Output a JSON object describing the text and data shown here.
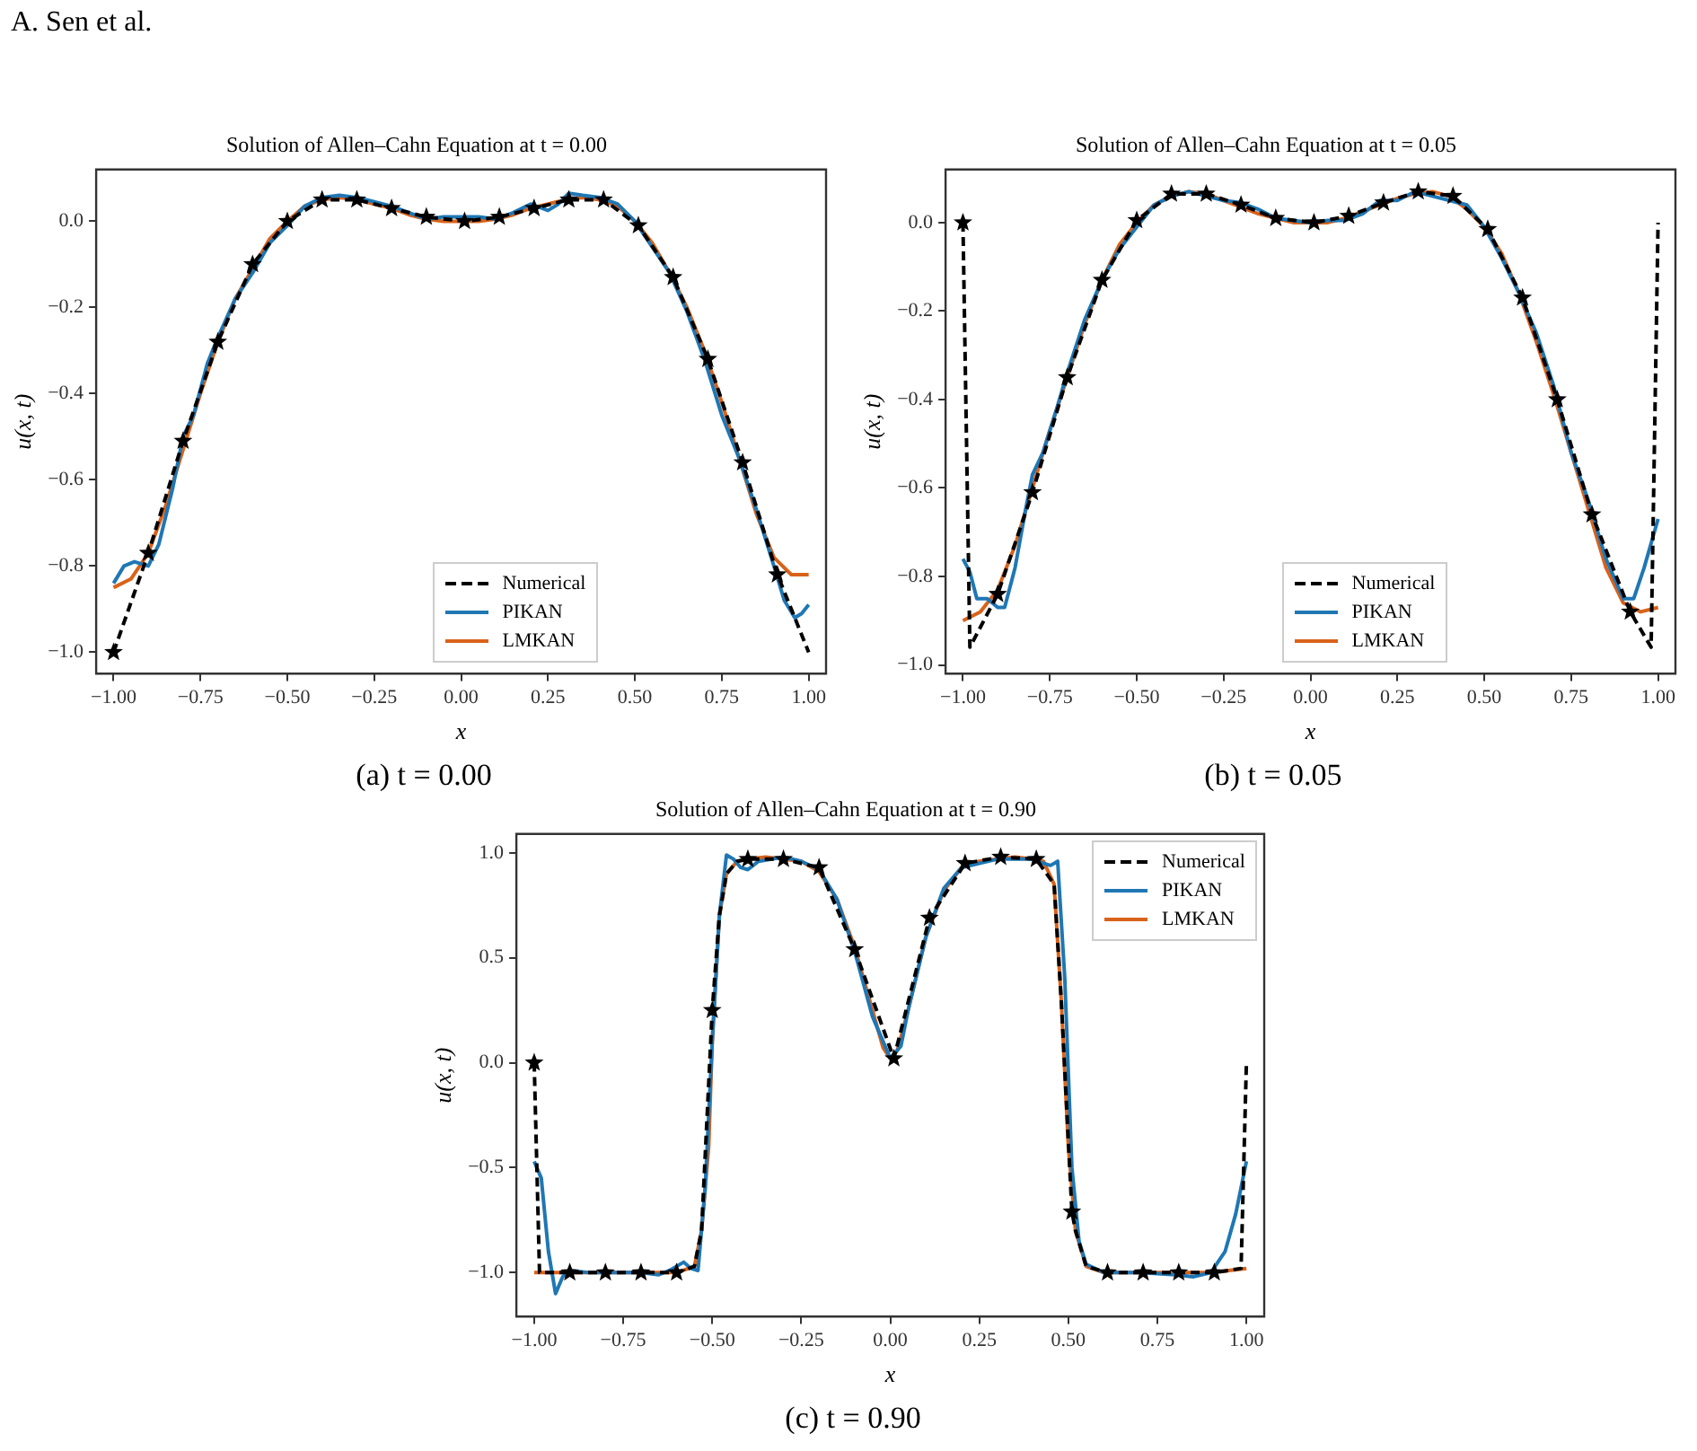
{
  "chart_data": [
    {
      "type": "line",
      "title": "Solution of Allen–Cahn Equation at t = 0.00",
      "xlabel": "x",
      "ylabel": "u(x, t)",
      "annotations": [
        "A. Sen et al.",
        "(a) t = 0.00"
      ],
      "legend": "bottom",
      "grid": false,
      "xlim": [
        -1.05,
        1.05
      ],
      "ylim": [
        -1.05,
        0.12
      ],
      "xticks": [
        {
          "value": -1,
          "label": "−1.00"
        },
        {
          "value": -0.75,
          "label": "−0.75"
        },
        {
          "value": -0.5,
          "label": "−0.50"
        },
        {
          "value": -0.25,
          "label": "−0.25"
        },
        {
          "value": 0,
          "label": "0.00"
        },
        {
          "value": 0.25,
          "label": "0.25"
        },
        {
          "value": 0.5,
          "label": "0.50"
        },
        {
          "value": 0.75,
          "label": "0.75"
        },
        {
          "value": 1,
          "label": "1.00"
        }
      ],
      "yticks": [
        {
          "value": -1,
          "label": "−1.0"
        },
        {
          "value": -0.8,
          "label": "−0.8"
        },
        {
          "value": -0.6,
          "label": "−0.6"
        },
        {
          "value": -0.4,
          "label": "−0.4"
        },
        {
          "value": -0.2,
          "label": "−0.2"
        },
        {
          "value": 0,
          "label": "0.0"
        }
      ],
      "series": [
        {
          "name": "Numerical",
          "type": "line",
          "color": "#000000",
          "line_style": "dashed",
          "marker": "none",
          "x": [
            -1,
            -0.9,
            -0.8,
            -0.7,
            -0.6,
            -0.5,
            -0.4,
            -0.3,
            -0.2,
            -0.1,
            0.01,
            0.11,
            0.21,
            0.31,
            0.41,
            0.51,
            0.61,
            0.71,
            0.81,
            0.91,
            1.0
          ],
          "values": [
            -1.0,
            -0.77,
            -0.51,
            -0.28,
            -0.1,
            0.0,
            0.05,
            0.05,
            0.03,
            0.01,
            0.0,
            0.01,
            0.03,
            0.05,
            0.05,
            -0.01,
            -0.13,
            -0.32,
            -0.56,
            -0.82,
            -1.0
          ]
        },
        {
          "name": "PIKAN",
          "type": "line",
          "color": "#1f77b4",
          "line_style": "solid",
          "marker": "none",
          "x": [
            -1,
            -0.97,
            -0.94,
            -0.9,
            -0.87,
            -0.83,
            -0.8,
            -0.77,
            -0.73,
            -0.7,
            -0.65,
            -0.6,
            -0.55,
            -0.5,
            -0.45,
            -0.4,
            -0.35,
            -0.3,
            -0.25,
            -0.2,
            -0.15,
            -0.1,
            -0.05,
            0,
            0.05,
            0.1,
            0.15,
            0.2,
            0.25,
            0.28,
            0.31,
            0.35,
            0.4,
            0.45,
            0.5,
            0.55,
            0.6,
            0.65,
            0.7,
            0.75,
            0.8,
            0.85,
            0.9,
            0.93,
            0.96,
            0.98,
            1.0
          ],
          "values": [
            -0.84,
            -0.8,
            -0.79,
            -0.8,
            -0.75,
            -0.62,
            -0.5,
            -0.45,
            -0.33,
            -0.27,
            -0.18,
            -0.12,
            -0.05,
            -0.01,
            0.035,
            0.055,
            0.06,
            0.055,
            0.045,
            0.035,
            0.02,
            0.005,
            0.01,
            0.01,
            0.01,
            0.005,
            0.02,
            0.04,
            0.025,
            0.04,
            0.065,
            0.06,
            0.055,
            0.04,
            0.0,
            -0.06,
            -0.12,
            -0.21,
            -0.32,
            -0.45,
            -0.55,
            -0.67,
            -0.8,
            -0.88,
            -0.92,
            -0.91,
            -0.89
          ]
        },
        {
          "name": "LMKAN",
          "type": "line",
          "color": "#d9621a",
          "line_style": "solid",
          "marker": "none",
          "x": [
            -1,
            -0.95,
            -0.9,
            -0.85,
            -0.8,
            -0.75,
            -0.7,
            -0.65,
            -0.6,
            -0.55,
            -0.5,
            -0.45,
            -0.4,
            -0.35,
            -0.3,
            -0.25,
            -0.2,
            -0.15,
            -0.1,
            -0.05,
            0,
            0.05,
            0.1,
            0.15,
            0.2,
            0.25,
            0.3,
            0.35,
            0.4,
            0.45,
            0.5,
            0.55,
            0.6,
            0.65,
            0.7,
            0.75,
            0.8,
            0.85,
            0.9,
            0.95,
            1.0
          ],
          "values": [
            -0.85,
            -0.83,
            -0.77,
            -0.66,
            -0.53,
            -0.4,
            -0.28,
            -0.18,
            -0.11,
            -0.04,
            0.0,
            0.035,
            0.05,
            0.055,
            0.05,
            0.04,
            0.03,
            0.015,
            0.005,
            0.0,
            0.0,
            0.0,
            0.005,
            0.015,
            0.03,
            0.04,
            0.05,
            0.055,
            0.05,
            0.035,
            0.0,
            -0.05,
            -0.12,
            -0.2,
            -0.3,
            -0.42,
            -0.55,
            -0.68,
            -0.78,
            -0.82,
            -0.82
          ]
        },
        {
          "type": "scatter",
          "color": "#000000",
          "marker": "star",
          "x": [
            -1,
            -0.9,
            -0.8,
            -0.7,
            -0.6,
            -0.5,
            -0.4,
            -0.3,
            -0.2,
            -0.1,
            0.01,
            0.11,
            0.21,
            0.31,
            0.41,
            0.51,
            0.61,
            0.71,
            0.81,
            0.91
          ],
          "values": [
            -1.0,
            -0.77,
            -0.51,
            -0.28,
            -0.1,
            0.0,
            0.05,
            0.05,
            0.03,
            0.01,
            0.0,
            0.01,
            0.03,
            0.05,
            0.05,
            -0.01,
            -0.13,
            -0.32,
            -0.56,
            -0.82
          ]
        }
      ]
    },
    {
      "type": "line",
      "title": "Solution of Allen–Cahn Equation at t = 0.05",
      "xlabel": "x",
      "ylabel": "u(x, t)",
      "annotations": [
        "(b) t = 0.05"
      ],
      "legend": "bottom",
      "grid": false,
      "xlim": [
        -1.05,
        1.05
      ],
      "ylim": [
        -1.02,
        0.12
      ],
      "xticks": [
        {
          "value": -1,
          "label": "−1.00"
        },
        {
          "value": -0.75,
          "label": "−0.75"
        },
        {
          "value": -0.5,
          "label": "−0.50"
        },
        {
          "value": -0.25,
          "label": "−0.25"
        },
        {
          "value": 0,
          "label": "0.00"
        },
        {
          "value": 0.25,
          "label": "0.25"
        },
        {
          "value": 0.5,
          "label": "0.50"
        },
        {
          "value": 0.75,
          "label": "0.75"
        },
        {
          "value": 1,
          "label": "1.00"
        }
      ],
      "yticks": [
        {
          "value": -1,
          "label": "−1.0"
        },
        {
          "value": -0.8,
          "label": "−0.8"
        },
        {
          "value": -0.6,
          "label": "−0.6"
        },
        {
          "value": -0.4,
          "label": "−0.4"
        },
        {
          "value": -0.2,
          "label": "−0.2"
        },
        {
          "value": 0,
          "label": "0.0"
        }
      ],
      "series": [
        {
          "name": "Numerical",
          "type": "line",
          "color": "#000000",
          "line_style": "dashed",
          "marker": "none",
          "x": [
            -1,
            -0.98,
            -0.9,
            -0.8,
            -0.7,
            -0.6,
            -0.5,
            -0.4,
            -0.3,
            -0.2,
            -0.1,
            0.01,
            0.11,
            0.21,
            0.31,
            0.41,
            0.51,
            0.61,
            0.71,
            0.81,
            0.92,
            0.98,
            1.0
          ],
          "values": [
            0.0,
            -0.96,
            -0.84,
            -0.61,
            -0.35,
            -0.13,
            0.005,
            0.065,
            0.065,
            0.04,
            0.01,
            0.0,
            0.015,
            0.045,
            0.07,
            0.06,
            -0.015,
            -0.17,
            -0.4,
            -0.66,
            -0.88,
            -0.96,
            0.0
          ]
        },
        {
          "name": "PIKAN",
          "type": "line",
          "color": "#1f77b4",
          "line_style": "solid",
          "marker": "none",
          "x": [
            -1,
            -0.98,
            -0.96,
            -0.93,
            -0.9,
            -0.88,
            -0.85,
            -0.82,
            -0.8,
            -0.77,
            -0.73,
            -0.7,
            -0.65,
            -0.6,
            -0.55,
            -0.5,
            -0.45,
            -0.4,
            -0.35,
            -0.3,
            -0.25,
            -0.2,
            -0.15,
            -0.1,
            -0.05,
            0,
            0.05,
            0.1,
            0.15,
            0.2,
            0.25,
            0.3,
            0.35,
            0.4,
            0.45,
            0.5,
            0.55,
            0.6,
            0.65,
            0.7,
            0.75,
            0.8,
            0.85,
            0.9,
            0.93,
            0.96,
            1.0
          ],
          "values": [
            -0.76,
            -0.79,
            -0.85,
            -0.85,
            -0.87,
            -0.87,
            -0.78,
            -0.65,
            -0.57,
            -0.52,
            -0.42,
            -0.34,
            -0.22,
            -0.13,
            -0.06,
            -0.01,
            0.04,
            0.06,
            0.07,
            0.06,
            0.05,
            0.045,
            0.03,
            0.01,
            0.005,
            0.0,
            0.005,
            0.005,
            0.02,
            0.05,
            0.05,
            0.07,
            0.06,
            0.05,
            0.04,
            -0.01,
            -0.08,
            -0.16,
            -0.25,
            -0.37,
            -0.52,
            -0.63,
            -0.76,
            -0.85,
            -0.85,
            -0.78,
            -0.67
          ]
        },
        {
          "name": "LMKAN",
          "type": "line",
          "color": "#d9621a",
          "line_style": "solid",
          "marker": "none",
          "x": [
            -1,
            -0.95,
            -0.9,
            -0.85,
            -0.8,
            -0.75,
            -0.7,
            -0.65,
            -0.6,
            -0.55,
            -0.5,
            -0.45,
            -0.4,
            -0.35,
            -0.3,
            -0.25,
            -0.2,
            -0.15,
            -0.1,
            -0.05,
            0,
            0.05,
            0.1,
            0.15,
            0.2,
            0.25,
            0.3,
            0.35,
            0.4,
            0.45,
            0.5,
            0.55,
            0.6,
            0.65,
            0.7,
            0.75,
            0.8,
            0.85,
            0.9,
            0.95,
            1.0
          ],
          "values": [
            -0.9,
            -0.88,
            -0.83,
            -0.73,
            -0.6,
            -0.47,
            -0.35,
            -0.23,
            -0.13,
            -0.05,
            0.0,
            0.04,
            0.06,
            0.07,
            0.065,
            0.05,
            0.035,
            0.02,
            0.01,
            0.0,
            0.0,
            0.0,
            0.01,
            0.025,
            0.04,
            0.055,
            0.065,
            0.07,
            0.06,
            0.03,
            -0.01,
            -0.07,
            -0.16,
            -0.27,
            -0.39,
            -0.52,
            -0.65,
            -0.78,
            -0.86,
            -0.88,
            -0.87
          ]
        },
        {
          "type": "scatter",
          "color": "#000000",
          "marker": "star",
          "x": [
            -1,
            -0.9,
            -0.8,
            -0.7,
            -0.6,
            -0.5,
            -0.4,
            -0.3,
            -0.2,
            -0.1,
            0.01,
            0.11,
            0.21,
            0.31,
            0.41,
            0.51,
            0.61,
            0.71,
            0.81,
            0.92
          ],
          "values": [
            0.0,
            -0.84,
            -0.61,
            -0.35,
            -0.13,
            0.005,
            0.065,
            0.065,
            0.04,
            0.01,
            0.0,
            0.015,
            0.045,
            0.07,
            0.06,
            -0.015,
            -0.17,
            -0.4,
            -0.66,
            -0.88
          ]
        }
      ]
    },
    {
      "type": "line",
      "title": "Solution of Allen–Cahn Equation at t = 0.90",
      "xlabel": "x",
      "ylabel": "u(x, t)",
      "annotations": [
        "(c) t = 0.90"
      ],
      "legend": "top right",
      "grid": false,
      "xlim": [
        -1.05,
        1.05
      ],
      "ylim": [
        -1.21,
        1.09
      ],
      "xticks": [
        {
          "value": -1,
          "label": "−1.00"
        },
        {
          "value": -0.75,
          "label": "−0.75"
        },
        {
          "value": -0.5,
          "label": "−0.50"
        },
        {
          "value": -0.25,
          "label": "−0.25"
        },
        {
          "value": 0,
          "label": "0.00"
        },
        {
          "value": 0.25,
          "label": "0.25"
        },
        {
          "value": 0.5,
          "label": "0.50"
        },
        {
          "value": 0.75,
          "label": "0.75"
        },
        {
          "value": 1,
          "label": "1.00"
        }
      ],
      "yticks": [
        {
          "value": -1,
          "label": "−1.0"
        },
        {
          "value": -0.5,
          "label": "−0.5"
        },
        {
          "value": 0,
          "label": "0.0"
        },
        {
          "value": 0.5,
          "label": "0.5"
        },
        {
          "value": 1,
          "label": "1.0"
        }
      ],
      "series": [
        {
          "name": "Numerical",
          "type": "line",
          "color": "#000000",
          "line_style": "dashed",
          "marker": "none",
          "x": [
            -1,
            -0.985,
            -0.9,
            -0.8,
            -0.7,
            -0.6,
            -0.55,
            -0.53,
            -0.5,
            -0.48,
            -0.46,
            -0.43,
            -0.4,
            -0.3,
            -0.2,
            -0.1,
            0.01,
            0.11,
            0.21,
            0.31,
            0.41,
            0.46,
            0.48,
            0.51,
            0.52,
            0.55,
            0.61,
            0.71,
            0.81,
            0.91,
            0.985,
            1.0
          ],
          "values": [
            0.0,
            -1.0,
            -1.0,
            -1.0,
            -1.0,
            -1.0,
            -0.97,
            -0.8,
            0.25,
            0.7,
            0.9,
            0.96,
            0.97,
            0.97,
            0.93,
            0.54,
            0.02,
            0.69,
            0.95,
            0.98,
            0.97,
            0.85,
            0.3,
            -0.71,
            -0.8,
            -0.97,
            -1.0,
            -1.0,
            -1.0,
            -1.0,
            -0.98,
            0.0
          ]
        },
        {
          "name": "PIKAN",
          "type": "line",
          "color": "#1f77b4",
          "line_style": "solid",
          "marker": "none",
          "x": [
            -1,
            -0.98,
            -0.96,
            -0.94,
            -0.92,
            -0.9,
            -0.85,
            -0.8,
            -0.7,
            -0.65,
            -0.62,
            -0.58,
            -0.56,
            -0.54,
            -0.52,
            -0.5,
            -0.48,
            -0.46,
            -0.44,
            -0.42,
            -0.4,
            -0.37,
            -0.3,
            -0.25,
            -0.2,
            -0.15,
            -0.1,
            -0.05,
            0,
            0.03,
            0.05,
            0.1,
            0.15,
            0.2,
            0.3,
            0.4,
            0.43,
            0.45,
            0.47,
            0.49,
            0.51,
            0.53,
            0.55,
            0.6,
            0.7,
            0.8,
            0.85,
            0.9,
            0.94,
            0.97,
            1.0
          ],
          "values": [
            -0.47,
            -0.55,
            -0.9,
            -1.1,
            -1.02,
            -0.99,
            -1.0,
            -1.0,
            -1.0,
            -1.01,
            -0.99,
            -0.95,
            -0.98,
            -0.99,
            -0.6,
            0.1,
            0.7,
            0.99,
            0.97,
            0.93,
            0.92,
            0.96,
            0.98,
            0.96,
            0.92,
            0.78,
            0.53,
            0.22,
            0.02,
            0.08,
            0.25,
            0.6,
            0.83,
            0.93,
            0.97,
            0.97,
            0.95,
            0.94,
            0.96,
            0.4,
            -0.5,
            -0.85,
            -0.96,
            -1.0,
            -1.0,
            -1.01,
            -1.02,
            -1.0,
            -0.9,
            -0.72,
            -0.47
          ]
        },
        {
          "name": "LMKAN",
          "type": "line",
          "color": "#d9621a",
          "line_style": "solid",
          "marker": "none",
          "x": [
            -1,
            -0.9,
            -0.8,
            -0.7,
            -0.6,
            -0.55,
            -0.53,
            -0.51,
            -0.5,
            -0.48,
            -0.46,
            -0.43,
            -0.4,
            -0.35,
            -0.3,
            -0.25,
            -0.2,
            -0.15,
            -0.1,
            -0.05,
            -0.02,
            0,
            0.02,
            0.05,
            0.1,
            0.15,
            0.2,
            0.25,
            0.3,
            0.35,
            0.4,
            0.43,
            0.46,
            0.48,
            0.5,
            0.52,
            0.55,
            0.6,
            0.7,
            0.8,
            0.9,
            1.0
          ],
          "values": [
            -1.0,
            -1.0,
            -1.0,
            -1.0,
            -1.0,
            -0.97,
            -0.8,
            -0.4,
            0.1,
            0.7,
            0.9,
            0.96,
            0.97,
            0.98,
            0.97,
            0.96,
            0.91,
            0.78,
            0.55,
            0.25,
            0.07,
            0.02,
            0.06,
            0.25,
            0.6,
            0.82,
            0.93,
            0.96,
            0.97,
            0.98,
            0.97,
            0.96,
            0.85,
            0.3,
            -0.4,
            -0.8,
            -0.97,
            -1.0,
            -1.0,
            -1.0,
            -1.0,
            -0.98
          ]
        },
        {
          "type": "scatter",
          "color": "#000000",
          "marker": "star",
          "x": [
            -1,
            -0.9,
            -0.8,
            -0.7,
            -0.6,
            -0.5,
            -0.4,
            -0.3,
            -0.2,
            -0.1,
            0.01,
            0.11,
            0.21,
            0.31,
            0.41,
            0.51,
            0.61,
            0.71,
            0.81,
            0.91
          ],
          "values": [
            0.0,
            -1.0,
            -1.0,
            -1.0,
            -1.0,
            0.25,
            0.97,
            0.97,
            0.93,
            0.54,
            0.02,
            0.69,
            0.95,
            0.98,
            0.97,
            -0.71,
            -1.0,
            -1.0,
            -1.0,
            -1.0
          ]
        }
      ]
    }
  ]
}
